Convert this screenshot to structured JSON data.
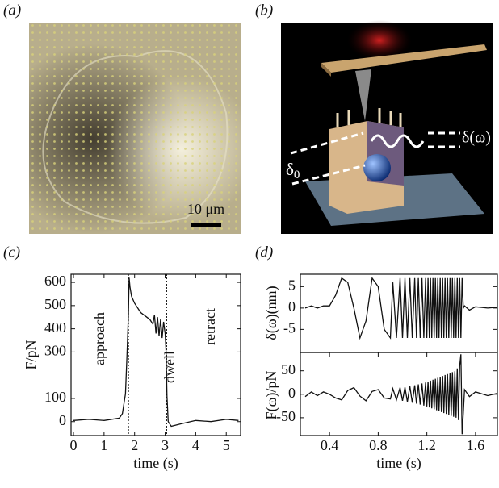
{
  "panels": {
    "a": {
      "label": "(a)",
      "scale_bar": "10 μm"
    },
    "b": {
      "label": "(b)",
      "delta0": {
        "symbol": "δ",
        "subscript": "0"
      },
      "delta_omega": "δ(ω)"
    },
    "c": {
      "label": "(c)"
    },
    "d": {
      "label": "(d)"
    }
  },
  "chart_data": [
    {
      "type": "line",
      "xlabel": "time (s)",
      "ylabel": "F/pN",
      "annotations": [
        "approach",
        "dwell",
        "retract"
      ],
      "vlines": [
        1.8,
        3.05
      ],
      "xlim": [
        -0.08,
        5.47
      ],
      "ylim": [
        -60,
        635
      ],
      "xticks": [
        0,
        1,
        2,
        3,
        4,
        5
      ],
      "yticks": [
        0,
        100,
        300,
        400,
        500,
        600
      ],
      "color": "#111111",
      "x": [
        0,
        0.5,
        1,
        1.5,
        1.6,
        1.7,
        1.75,
        1.8,
        1.82,
        1.85,
        1.9,
        2,
        2.2,
        2.4,
        2.5,
        2.6,
        2.65,
        2.7,
        2.75,
        2.8,
        2.85,
        2.9,
        2.95,
        3,
        3.03,
        3.06,
        3.1,
        3.2,
        3.5,
        4,
        4.5,
        5,
        5.4
      ],
      "values": [
        5,
        10,
        5,
        15,
        35,
        120,
        280,
        470,
        620,
        580,
        540,
        510,
        470,
        450,
        440,
        420,
        460,
        380,
        450,
        370,
        440,
        360,
        430,
        380,
        300,
        110,
        0,
        -20,
        -10,
        5,
        0,
        10,
        5
      ]
    },
    {
      "type": "line",
      "ylabel": "δ(ω)(nm)",
      "xlim": [
        0.16,
        1.78
      ],
      "ylim": [
        -10.4,
        7.9
      ],
      "yticks": [
        5,
        0,
        -5
      ],
      "color": "#111111",
      "x": [
        0.2,
        0.25,
        0.3,
        0.35,
        0.4,
        0.45,
        0.5,
        0.55,
        0.6,
        0.65,
        0.7,
        0.75,
        0.8,
        0.85,
        0.9,
        0.92,
        0.95,
        0.98,
        1.0,
        1.02,
        1.04,
        1.06,
        1.08,
        1.1,
        1.115,
        1.13,
        1.145,
        1.16,
        1.175,
        1.19,
        1.2,
        1.21,
        1.22,
        1.23,
        1.24,
        1.25,
        1.26,
        1.27,
        1.28,
        1.29,
        1.3,
        1.31,
        1.32,
        1.33,
        1.34,
        1.35,
        1.36,
        1.37,
        1.38,
        1.39,
        1.4,
        1.41,
        1.42,
        1.43,
        1.44,
        1.45,
        1.46,
        1.47,
        1.48,
        1.49,
        1.5,
        1.51,
        1.55,
        1.6,
        1.7,
        1.78
      ],
      "values": [
        0,
        0.5,
        0,
        0.5,
        0.5,
        3,
        7,
        6,
        0,
        -7,
        -3,
        7,
        5,
        -5,
        -7,
        6,
        -7,
        7,
        -7,
        7,
        -7,
        7,
        -7,
        7,
        -7,
        7,
        -7,
        7,
        -7,
        7,
        -7,
        7,
        -7,
        7,
        -7,
        7,
        -7,
        7,
        -7,
        7,
        -7,
        7,
        -7,
        7,
        -7,
        7,
        -7,
        7,
        -7,
        7,
        -7,
        7,
        -7,
        7,
        -7,
        7,
        -7,
        7,
        -7,
        7,
        0,
        0.5,
        -0.5,
        0.3,
        0,
        0.2
      ]
    },
    {
      "type": "line",
      "xlabel": "time (s)",
      "ylabel": "F(ω)/pN",
      "xlim": [
        0.16,
        1.78
      ],
      "ylim": [
        -88,
        89
      ],
      "xticks": [
        0.4,
        0.8,
        1.2,
        1.6
      ],
      "yticks": [
        50,
        0,
        -50
      ],
      "color": "#111111",
      "x": [
        0.2,
        0.25,
        0.3,
        0.35,
        0.4,
        0.45,
        0.5,
        0.55,
        0.6,
        0.65,
        0.7,
        0.75,
        0.8,
        0.85,
        0.9,
        0.92,
        0.95,
        0.98,
        1.0,
        1.02,
        1.04,
        1.06,
        1.08,
        1.1,
        1.115,
        1.13,
        1.145,
        1.16,
        1.175,
        1.19,
        1.2,
        1.21,
        1.22,
        1.23,
        1.24,
        1.25,
        1.26,
        1.27,
        1.28,
        1.29,
        1.3,
        1.31,
        1.32,
        1.33,
        1.34,
        1.35,
        1.36,
        1.37,
        1.38,
        1.39,
        1.4,
        1.41,
        1.42,
        1.43,
        1.44,
        1.45,
        1.46,
        1.47,
        1.48,
        1.49,
        1.5,
        1.51,
        1.55,
        1.6,
        1.7,
        1.78
      ],
      "values": [
        -5,
        5,
        -3,
        5,
        0,
        -8,
        -12,
        8,
        14,
        -4,
        -14,
        6,
        10,
        -8,
        -10,
        12,
        -12,
        14,
        -14,
        15,
        -16,
        17,
        -18,
        19,
        -20,
        21,
        -22,
        23,
        -24,
        25,
        -26,
        27,
        -28,
        29,
        -30,
        31,
        -32,
        33,
        -34,
        35,
        -36,
        37,
        -38,
        39,
        -40,
        41,
        -42,
        43,
        -44,
        45,
        -46,
        47,
        -48,
        49,
        -50,
        55,
        -55,
        60,
        85,
        -85,
        -40,
        10,
        -5,
        5,
        -3,
        2
      ]
    }
  ]
}
